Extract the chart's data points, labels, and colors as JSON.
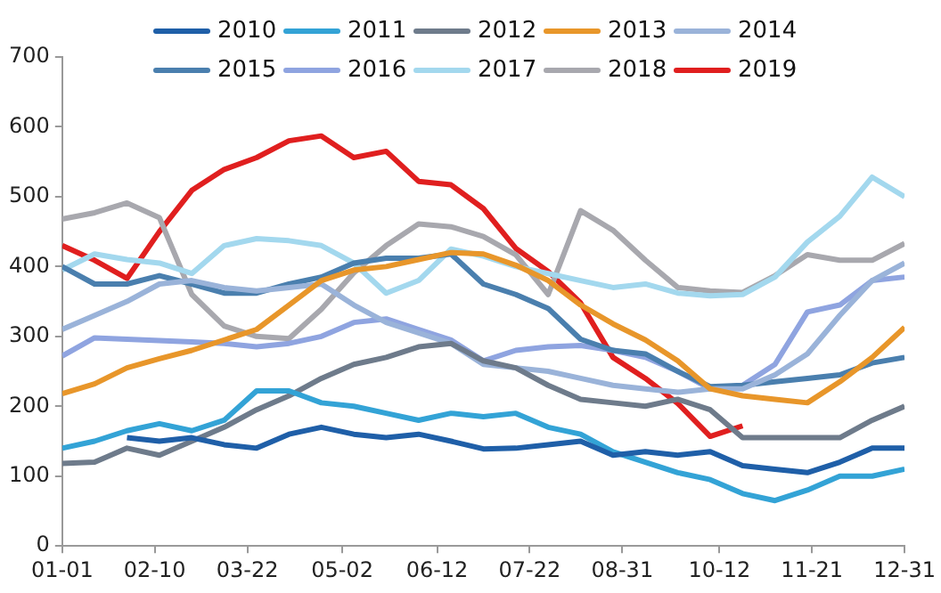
{
  "chart_data": {
    "type": "line",
    "x": [
      "--01-01",
      "--01-15",
      "--01-29",
      "--02-12",
      "--02-26",
      "--03-12",
      "--03-26",
      "--04-09",
      "--04-23",
      "--05-07",
      "--05-21",
      "--06-04",
      "--06-18",
      "--07-02",
      "--07-16",
      "--07-30",
      "--08-13",
      "--08-27",
      "--09-10",
      "--09-24",
      "--10-08",
      "--10-22",
      "--11-05",
      "--11-19",
      "--12-03",
      "--12-17",
      "--12-31"
    ],
    "series": [
      {
        "name": "2010",
        "color": "#1f5fa8",
        "values": [
          null,
          null,
          155,
          150,
          155,
          145,
          140,
          160,
          170,
          160,
          155,
          160,
          150,
          139,
          140,
          145,
          150,
          130,
          135,
          130,
          135,
          115,
          110,
          105,
          120,
          140,
          140
        ]
      },
      {
        "name": "2011",
        "color": "#33a3d6",
        "values": [
          140,
          150,
          165,
          175,
          165,
          180,
          222,
          222,
          205,
          200,
          190,
          180,
          190,
          185,
          190,
          170,
          160,
          135,
          120,
          105,
          95,
          75,
          65,
          80,
          100,
          100,
          110
        ]
      },
      {
        "name": "2012",
        "color": "#6e7b8b",
        "values": [
          118,
          120,
          140,
          130,
          150,
          170,
          195,
          215,
          240,
          260,
          270,
          285,
          290,
          265,
          255,
          230,
          210,
          205,
          200,
          210,
          195,
          155,
          155,
          155,
          155,
          180,
          200
        ]
      },
      {
        "name": "2013",
        "color": "#e8962a",
        "values": [
          218,
          232,
          255,
          268,
          280,
          295,
          310,
          345,
          380,
          395,
          400,
          410,
          420,
          418,
          402,
          380,
          345,
          318,
          295,
          265,
          225,
          215,
          210,
          205,
          235,
          270,
          313
        ]
      },
      {
        "name": "2014",
        "color": "#9ab3d9",
        "values": [
          310,
          330,
          350,
          375,
          380,
          370,
          365,
          370,
          375,
          345,
          320,
          305,
          290,
          260,
          255,
          250,
          240,
          230,
          225,
          220,
          225,
          225,
          245,
          275,
          330,
          380,
          405
        ]
      },
      {
        "name": "2015",
        "color": "#4a7fae",
        "values": [
          400,
          375,
          375,
          387,
          375,
          362,
          362,
          375,
          385,
          405,
          412,
          412,
          418,
          375,
          360,
          340,
          296,
          280,
          275,
          250,
          228,
          230,
          235,
          240,
          245,
          262,
          270
        ]
      },
      {
        "name": "2016",
        "color": "#8fa4e0",
        "values": [
          272,
          298,
          296,
          294,
          292,
          290,
          285,
          290,
          300,
          320,
          325,
          310,
          295,
          265,
          280,
          285,
          287,
          280,
          270,
          250,
          225,
          230,
          260,
          335,
          345,
          380,
          385
        ]
      },
      {
        "name": "2017",
        "color": "#a3d8ee",
        "values": [
          395,
          418,
          410,
          405,
          390,
          430,
          440,
          437,
          430,
          405,
          362,
          380,
          425,
          415,
          400,
          390,
          380,
          370,
          375,
          362,
          358,
          360,
          385,
          435,
          472,
          528,
          500
        ]
      },
      {
        "name": "2018",
        "color": "#a8a8ae",
        "values": [
          468,
          477,
          491,
          470,
          360,
          315,
          300,
          297,
          339,
          391,
          430,
          461,
          457,
          443,
          417,
          360,
          480,
          452,
          409,
          370,
          365,
          363,
          387,
          417,
          409,
          409,
          433
        ]
      },
      {
        "name": "2019",
        "color": "#e01f1f",
        "values": [
          430,
          409,
          383,
          450,
          509,
          539,
          556,
          580,
          587,
          556,
          565,
          522,
          517,
          483,
          426,
          393,
          348,
          270,
          240,
          204,
          157,
          172,
          null,
          null,
          null,
          null,
          null
        ]
      }
    ],
    "xlim": [
      "--01-01",
      "--12-31"
    ],
    "xticks": [
      {
        "value": "--01-01",
        "label": "01-01"
      },
      {
        "value": "--02-10",
        "label": "02-10"
      },
      {
        "value": "--03-22",
        "label": "03-22"
      },
      {
        "value": "--05-02",
        "label": "05-02"
      },
      {
        "value": "--06-12",
        "label": "06-12"
      },
      {
        "value": "--07-22",
        "label": "07-22"
      },
      {
        "value": "--08-31",
        "label": "08-31"
      },
      {
        "value": "--10-12",
        "label": "10-12"
      },
      {
        "value": "--11-21",
        "label": "11-21"
      },
      {
        "value": "--12-31",
        "label": "12-31"
      }
    ],
    "ylim": [
      0,
      700
    ],
    "yticks": [
      0,
      100,
      200,
      300,
      400,
      500,
      600,
      700
    ],
    "grid": false,
    "legend": "top",
    "marker": "none",
    "line_style": "solid"
  }
}
